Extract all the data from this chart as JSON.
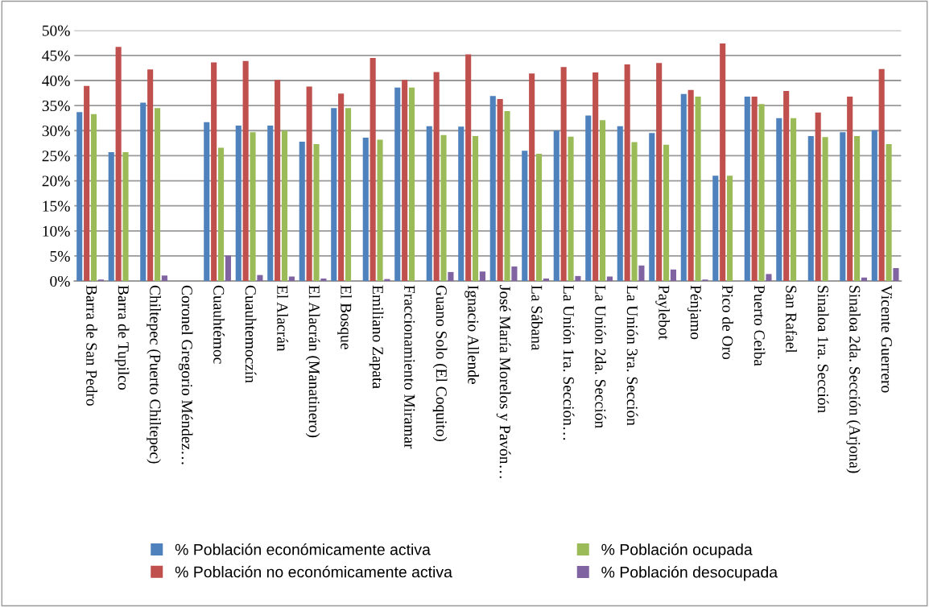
{
  "chart_data": {
    "type": "bar",
    "categories": [
      "Barra de San Pedro",
      "Barra de Tupilco",
      "Chiltepec (Puerto Chiltepec)",
      "Coronel Gregorio Méndez…",
      "Cuauhtémoc",
      "Cuauhtemoczín",
      "El Alacrán",
      "El Alacrán (Manatinero)",
      "El Bosque",
      "Emiliano Zapata",
      "Fraccionamiento Miramar",
      "Guano Solo (El Coquito)",
      "Ignacio Allende",
      "José María Morelos y Pavón…",
      "La Sábana",
      "La Unión 1ra. Sección…",
      "La Unión 2da. Sección",
      "La Unión 3ra. Sección",
      "Paylebot",
      "Pénjamo",
      "Pico de Oro",
      "Puerto Ceiba",
      "San Rafael",
      "Sinaloa 1ra. Sección",
      "Sinaloa 2da. Sección (Arjona)",
      "Vicente Guerrero"
    ],
    "series": [
      {
        "name": "% Población económicamente activa",
        "color": "#4f81bd",
        "values": [
          33.7,
          25.7,
          35.6,
          0,
          31.7,
          31.0,
          31.0,
          27.8,
          34.5,
          28.6,
          38.6,
          30.9,
          30.8,
          36.9,
          26.0,
          30.0,
          33.0,
          30.9,
          29.5,
          37.3,
          21.0,
          36.8,
          32.5,
          28.9,
          29.7,
          30.1
        ]
      },
      {
        "name": "% Población no económicamente activa",
        "color": "#c0504d",
        "values": [
          38.9,
          46.7,
          42.2,
          0,
          43.6,
          43.9,
          40.1,
          38.8,
          37.4,
          44.5,
          40.1,
          41.7,
          45.2,
          36.3,
          41.4,
          42.7,
          41.6,
          43.2,
          43.5,
          38.1,
          47.4,
          36.8,
          37.9,
          33.6,
          36.8,
          42.3
        ]
      },
      {
        "name": "% Población ocupada",
        "color": "#9bbb59",
        "values": [
          33.3,
          25.7,
          34.5,
          0,
          26.6,
          29.7,
          30.0,
          27.3,
          34.5,
          28.2,
          38.6,
          29.1,
          28.9,
          33.9,
          25.4,
          28.8,
          32.1,
          27.7,
          27.2,
          36.8,
          21.0,
          35.3,
          32.5,
          28.7,
          28.9,
          27.3
        ]
      },
      {
        "name": "% Población desocupada",
        "color": "#8064a2",
        "values": [
          0.3,
          0,
          1.1,
          0,
          5.1,
          1.2,
          0.9,
          0.5,
          0,
          0.4,
          0,
          1.8,
          1.9,
          2.9,
          0.5,
          1.0,
          0.9,
          3.1,
          2.3,
          0.3,
          0,
          1.4,
          0,
          0,
          0.7,
          2.6
        ]
      }
    ],
    "ylim": [
      0,
      50
    ],
    "yticks": [
      {
        "value": 0,
        "label": "0%"
      },
      {
        "value": 5,
        "label": "5%"
      },
      {
        "value": 10,
        "label": "10%"
      },
      {
        "value": 15,
        "label": "15%"
      },
      {
        "value": 20,
        "label": "20%"
      },
      {
        "value": 25,
        "label": "25%"
      },
      {
        "value": 30,
        "label": "30%"
      },
      {
        "value": 35,
        "label": "35%"
      },
      {
        "value": 40,
        "label": "40%"
      },
      {
        "value": 45,
        "label": "45%"
      },
      {
        "value": 50,
        "label": "50%"
      }
    ],
    "grid": "y",
    "legend": "bottom"
  }
}
